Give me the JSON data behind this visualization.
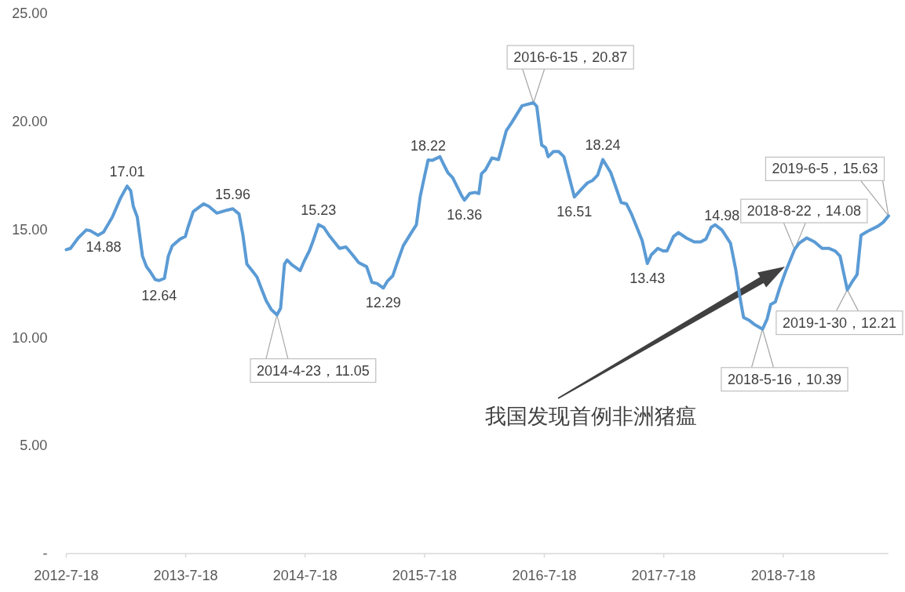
{
  "chart_data": {
    "type": "line",
    "color": "#5b9bd5",
    "x": [
      "2012-07-18",
      "2012-07-31",
      "2012-08-24",
      "2012-09-17",
      "2012-09-29",
      "2012-10-23",
      "2012-11-09",
      "2012-12-06",
      "2012-12-30",
      "2013-01-20",
      "2013-01-31",
      "2013-02-08",
      "2013-02-20",
      "2013-03-08",
      "2013-03-20",
      "2013-04-01",
      "2013-04-16",
      "2013-04-28",
      "2013-05-14",
      "2013-05-26",
      "2013-06-07",
      "2013-07-01",
      "2013-07-17",
      "2013-07-25",
      "2013-08-10",
      "2013-09-11",
      "2013-09-27",
      "2013-10-21",
      "2013-11-22",
      "2013-12-09",
      "2013-12-28",
      "2014-01-09",
      "2014-01-21",
      "2014-02-09",
      "2014-02-21",
      "2014-03-05",
      "2014-03-21",
      "2014-04-06",
      "2014-04-23",
      "2014-05-04",
      "2014-05-16",
      "2014-05-24",
      "2014-06-09",
      "2014-07-03",
      "2014-07-15",
      "2014-07-31",
      "2014-08-12",
      "2014-08-28",
      "2014-09-13",
      "2014-09-29",
      "2014-10-31",
      "2014-11-20",
      "2014-12-10",
      "2014-12-29",
      "2015-01-22",
      "2015-02-07",
      "2015-02-23",
      "2015-03-14",
      "2015-03-27",
      "2015-04-12",
      "2015-04-24",
      "2015-05-14",
      "2015-06-03",
      "2015-06-23",
      "2015-07-05",
      "2015-07-17",
      "2015-07-29",
      "2015-08-10",
      "2015-09-03",
      "2015-09-15",
      "2015-09-27",
      "2015-10-12",
      "2015-11-09",
      "2015-11-17",
      "2015-12-03",
      "2015-12-19",
      "2015-12-31",
      "2016-01-08",
      "2016-01-20",
      "2016-02-09",
      "2016-02-29",
      "2016-03-24",
      "2016-04-09",
      "2016-05-11",
      "2016-06-15",
      "2016-06-25",
      "2016-07-10",
      "2016-07-22",
      "2016-07-30",
      "2016-08-15",
      "2016-08-31",
      "2016-09-16",
      "2016-10-18",
      "2016-11-11",
      "2016-11-27",
      "2016-12-13",
      "2016-12-28",
      "2017-01-13",
      "2017-02-06",
      "2017-03-10",
      "2017-03-26",
      "2017-04-11",
      "2017-04-27",
      "2017-05-13",
      "2017-05-29",
      "2017-06-10",
      "2017-06-30",
      "2017-07-16",
      "2017-07-28",
      "2017-08-17",
      "2017-09-01",
      "2017-09-25",
      "2017-10-19",
      "2017-11-08",
      "2017-11-24",
      "2017-12-10",
      "2017-12-22",
      "2018-01-12",
      "2018-02-07",
      "2018-02-23",
      "2018-03-07",
      "2018-03-19",
      "2018-04-04",
      "2018-04-20",
      "2018-05-16",
      "2018-05-30",
      "2018-06-10",
      "2018-06-24",
      "2018-07-08",
      "2018-07-25",
      "2018-08-22",
      "2018-09-05",
      "2018-09-28",
      "2018-10-22",
      "2018-11-14",
      "2018-12-04",
      "2018-12-24",
      "2019-01-08",
      "2019-01-20",
      "2019-01-30",
      "2019-02-13",
      "2019-03-01",
      "2019-03-13",
      "2019-04-02",
      "2019-05-04",
      "2019-05-20",
      "2019-06-05"
    ],
    "values": [
      14.07,
      14.13,
      14.62,
      14.98,
      14.95,
      14.74,
      14.88,
      15.58,
      16.43,
      17.01,
      16.8,
      16.07,
      15.58,
      13.77,
      13.29,
      13.04,
      12.68,
      12.64,
      12.74,
      13.77,
      14.25,
      14.56,
      14.68,
      15.1,
      15.83,
      16.19,
      16.07,
      15.76,
      15.9,
      15.96,
      15.72,
      14.74,
      13.4,
      13.04,
      12.8,
      12.32,
      11.71,
      11.29,
      11.05,
      11.35,
      13.4,
      13.59,
      13.35,
      13.1,
      13.53,
      14.01,
      14.5,
      15.23,
      15.1,
      14.74,
      14.13,
      14.19,
      13.83,
      13.47,
      13.28,
      12.56,
      12.5,
      12.29,
      12.62,
      12.86,
      13.4,
      14.25,
      14.74,
      15.22,
      16.55,
      17.4,
      18.22,
      18.2,
      18.37,
      18.0,
      17.64,
      17.4,
      16.55,
      16.36,
      16.67,
      16.72,
      16.67,
      17.58,
      17.76,
      18.31,
      18.24,
      19.58,
      19.94,
      20.73,
      20.87,
      20.7,
      18.91,
      18.79,
      18.37,
      18.61,
      18.61,
      18.37,
      16.51,
      16.91,
      17.16,
      17.28,
      17.52,
      18.24,
      17.64,
      16.25,
      16.19,
      15.7,
      15.1,
      14.49,
      13.43,
      13.83,
      14.13,
      14.01,
      14.01,
      14.68,
      14.86,
      14.61,
      14.43,
      14.43,
      14.56,
      15.1,
      15.22,
      14.98,
      14.37,
      13.16,
      11.95,
      10.93,
      10.81,
      10.62,
      10.39,
      10.86,
      11.53,
      11.65,
      12.32,
      13.04,
      14.08,
      14.37,
      14.61,
      14.43,
      14.13,
      14.13,
      14.01,
      13.77,
      12.92,
      12.21,
      12.56,
      12.92,
      14.74,
      14.92,
      15.16,
      15.34,
      15.63
    ],
    "value_labels": [
      null,
      null,
      null,
      null,
      null,
      null,
      "14.88",
      null,
      null,
      "17.01",
      null,
      null,
      null,
      null,
      null,
      null,
      null,
      "12.64",
      null,
      null,
      null,
      null,
      null,
      null,
      null,
      null,
      null,
      null,
      null,
      "15.96",
      null,
      null,
      null,
      null,
      null,
      null,
      null,
      null,
      null,
      null,
      null,
      null,
      null,
      null,
      null,
      null,
      null,
      "15.23",
      null,
      null,
      null,
      null,
      null,
      null,
      null,
      null,
      null,
      "12.29",
      null,
      null,
      null,
      null,
      null,
      null,
      null,
      null,
      "18.22",
      null,
      null,
      null,
      null,
      null,
      null,
      "16.36",
      null,
      null,
      null,
      null,
      null,
      null,
      null,
      null,
      null,
      null,
      null,
      null,
      null,
      null,
      null,
      null,
      null,
      null,
      "16.51",
      null,
      null,
      null,
      null,
      "18.24",
      null,
      null,
      null,
      null,
      null,
      null,
      "13.43",
      null,
      null,
      null,
      null,
      null,
      null,
      null,
      null,
      null,
      null,
      null,
      null,
      "14.98",
      null,
      null,
      null,
      null,
      null,
      null,
      null,
      null,
      null,
      null,
      null,
      null,
      null,
      null,
      null,
      null,
      null,
      null,
      null,
      null,
      null,
      null,
      null,
      null,
      null,
      null,
      null,
      null,
      null
    ],
    "xlim": [
      "2012-07-18",
      "2019-06-05"
    ],
    "xticks": [
      {
        "value": "2012-07-18",
        "label": "2012-7-18"
      },
      {
        "value": "2013-07-18",
        "label": "2013-7-18"
      },
      {
        "value": "2014-07-18",
        "label": "2014-7-18"
      },
      {
        "value": "2015-07-18",
        "label": "2015-7-18"
      },
      {
        "value": "2016-07-18",
        "label": "2016-7-18"
      },
      {
        "value": "2017-07-18",
        "label": "2017-7-18"
      },
      {
        "value": "2018-07-18",
        "label": "2018-7-18"
      }
    ],
    "ylim": [
      0,
      25
    ],
    "yticks": [
      {
        "value": 0,
        "label": "-"
      },
      {
        "value": 5,
        "label": "5.00"
      },
      {
        "value": 10,
        "label": "10.00"
      },
      {
        "value": 15,
        "label": "15.00"
      },
      {
        "value": 20,
        "label": "20.00"
      },
      {
        "value": 25,
        "label": "25.00"
      }
    ],
    "annotations": [
      {
        "text": "2014-4-23，11.05",
        "x": "2014-04-23",
        "y": 11.05
      },
      {
        "text": "2016-6-15，20.87",
        "x": "2016-06-15",
        "y": 20.87
      },
      {
        "text": "2018-5-16，10.39",
        "x": "2018-05-16",
        "y": 10.39
      },
      {
        "text": "2018-8-22，14.08",
        "x": "2018-08-22",
        "y": 14.08
      },
      {
        "text": "2019-1-30，12.21",
        "x": "2019-01-30",
        "y": 12.21
      },
      {
        "text": "2019-6-5，15.63",
        "x": "2019-06-05",
        "y": 15.63
      },
      "我国发现首例非洲猪瘟"
    ]
  }
}
